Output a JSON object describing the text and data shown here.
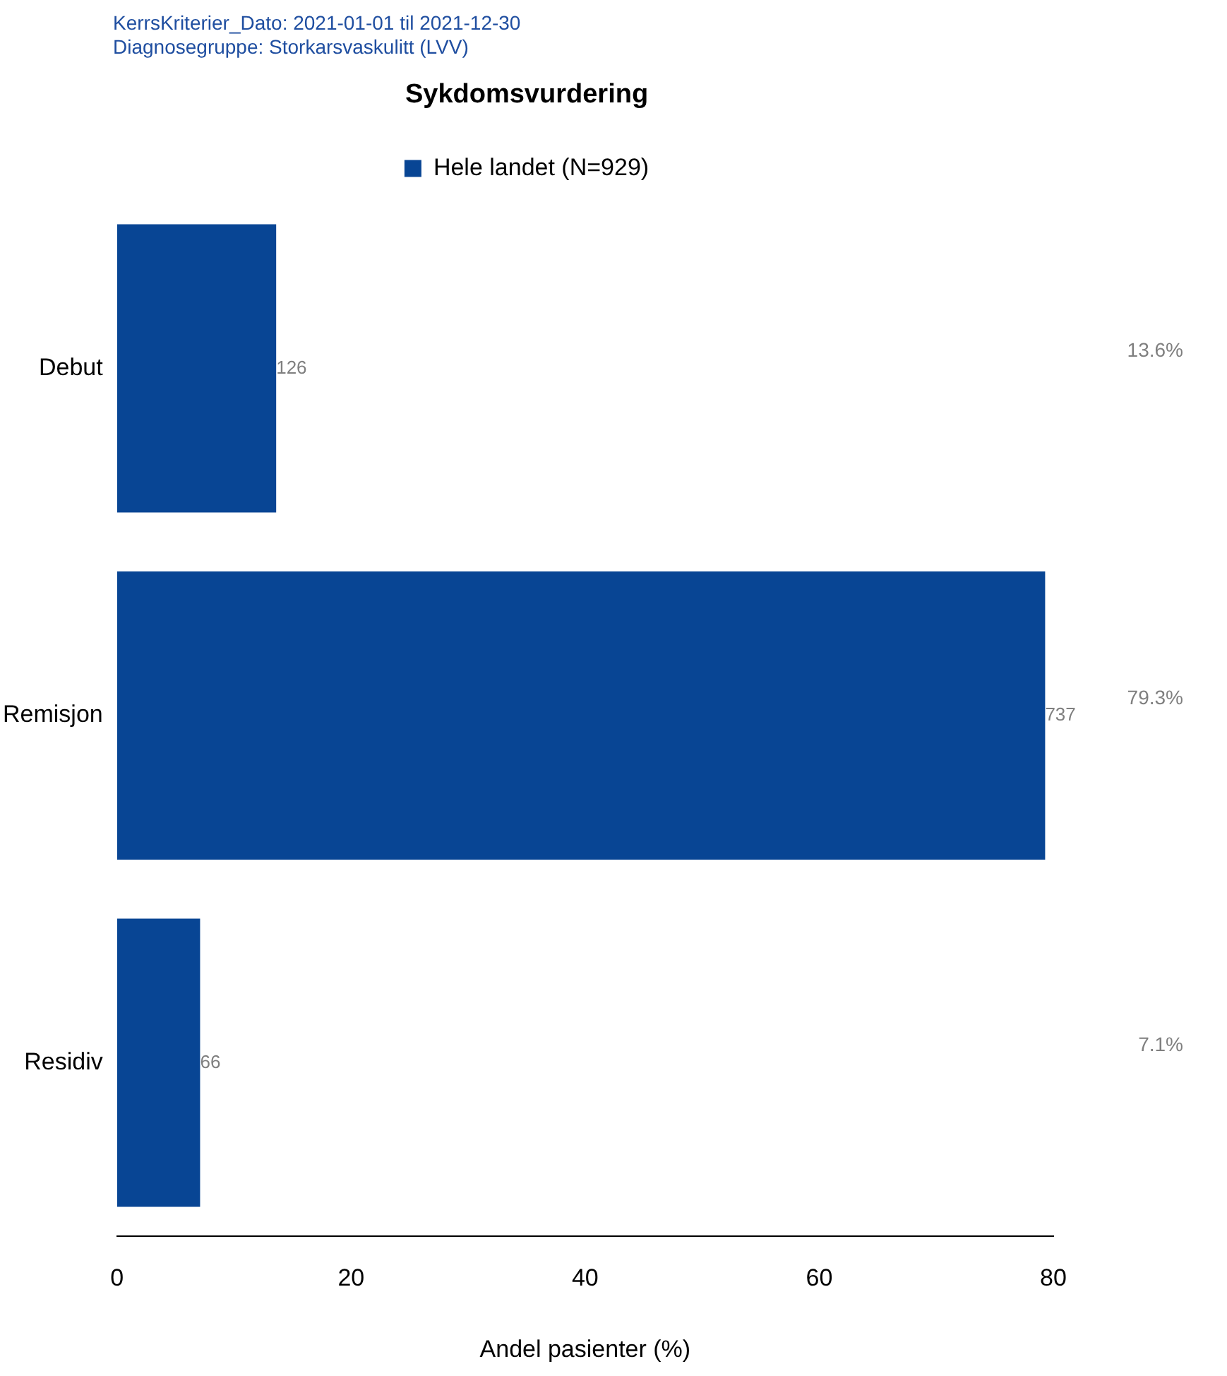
{
  "chart_data": {
    "type": "bar",
    "orientation": "horizontal",
    "title": "Sykdomsvurdering",
    "xlabel": "Andel pasienter (%)",
    "categories": [
      "Debut",
      "Remisjon",
      "Residiv"
    ],
    "series": [
      {
        "name": "Hele landet (N=929)",
        "color": "#084594",
        "values": [
          13.6,
          79.3,
          7.1
        ],
        "value_labels": [
          "13.6%",
          "79.3%",
          "7.1%"
        ]
      }
    ],
    "xlim": [
      0,
      80
    ],
    "xticks": [
      0,
      20,
      40,
      60,
      80
    ],
    "grid": false,
    "legend": "top",
    "annotations": [
      "KerrsKriterier_Dato: 2021-01-01 til 2021-12-30",
      "Diagnosegruppe: Storkarsvaskulitt (LVV)",
      {
        "text": "126",
        "x": 13.6,
        "y": "Debut"
      },
      {
        "text": "737",
        "x": 79.3,
        "y": "Remisjon"
      },
      {
        "text": "66",
        "x": 7.1,
        "y": "Residiv"
      }
    ]
  }
}
